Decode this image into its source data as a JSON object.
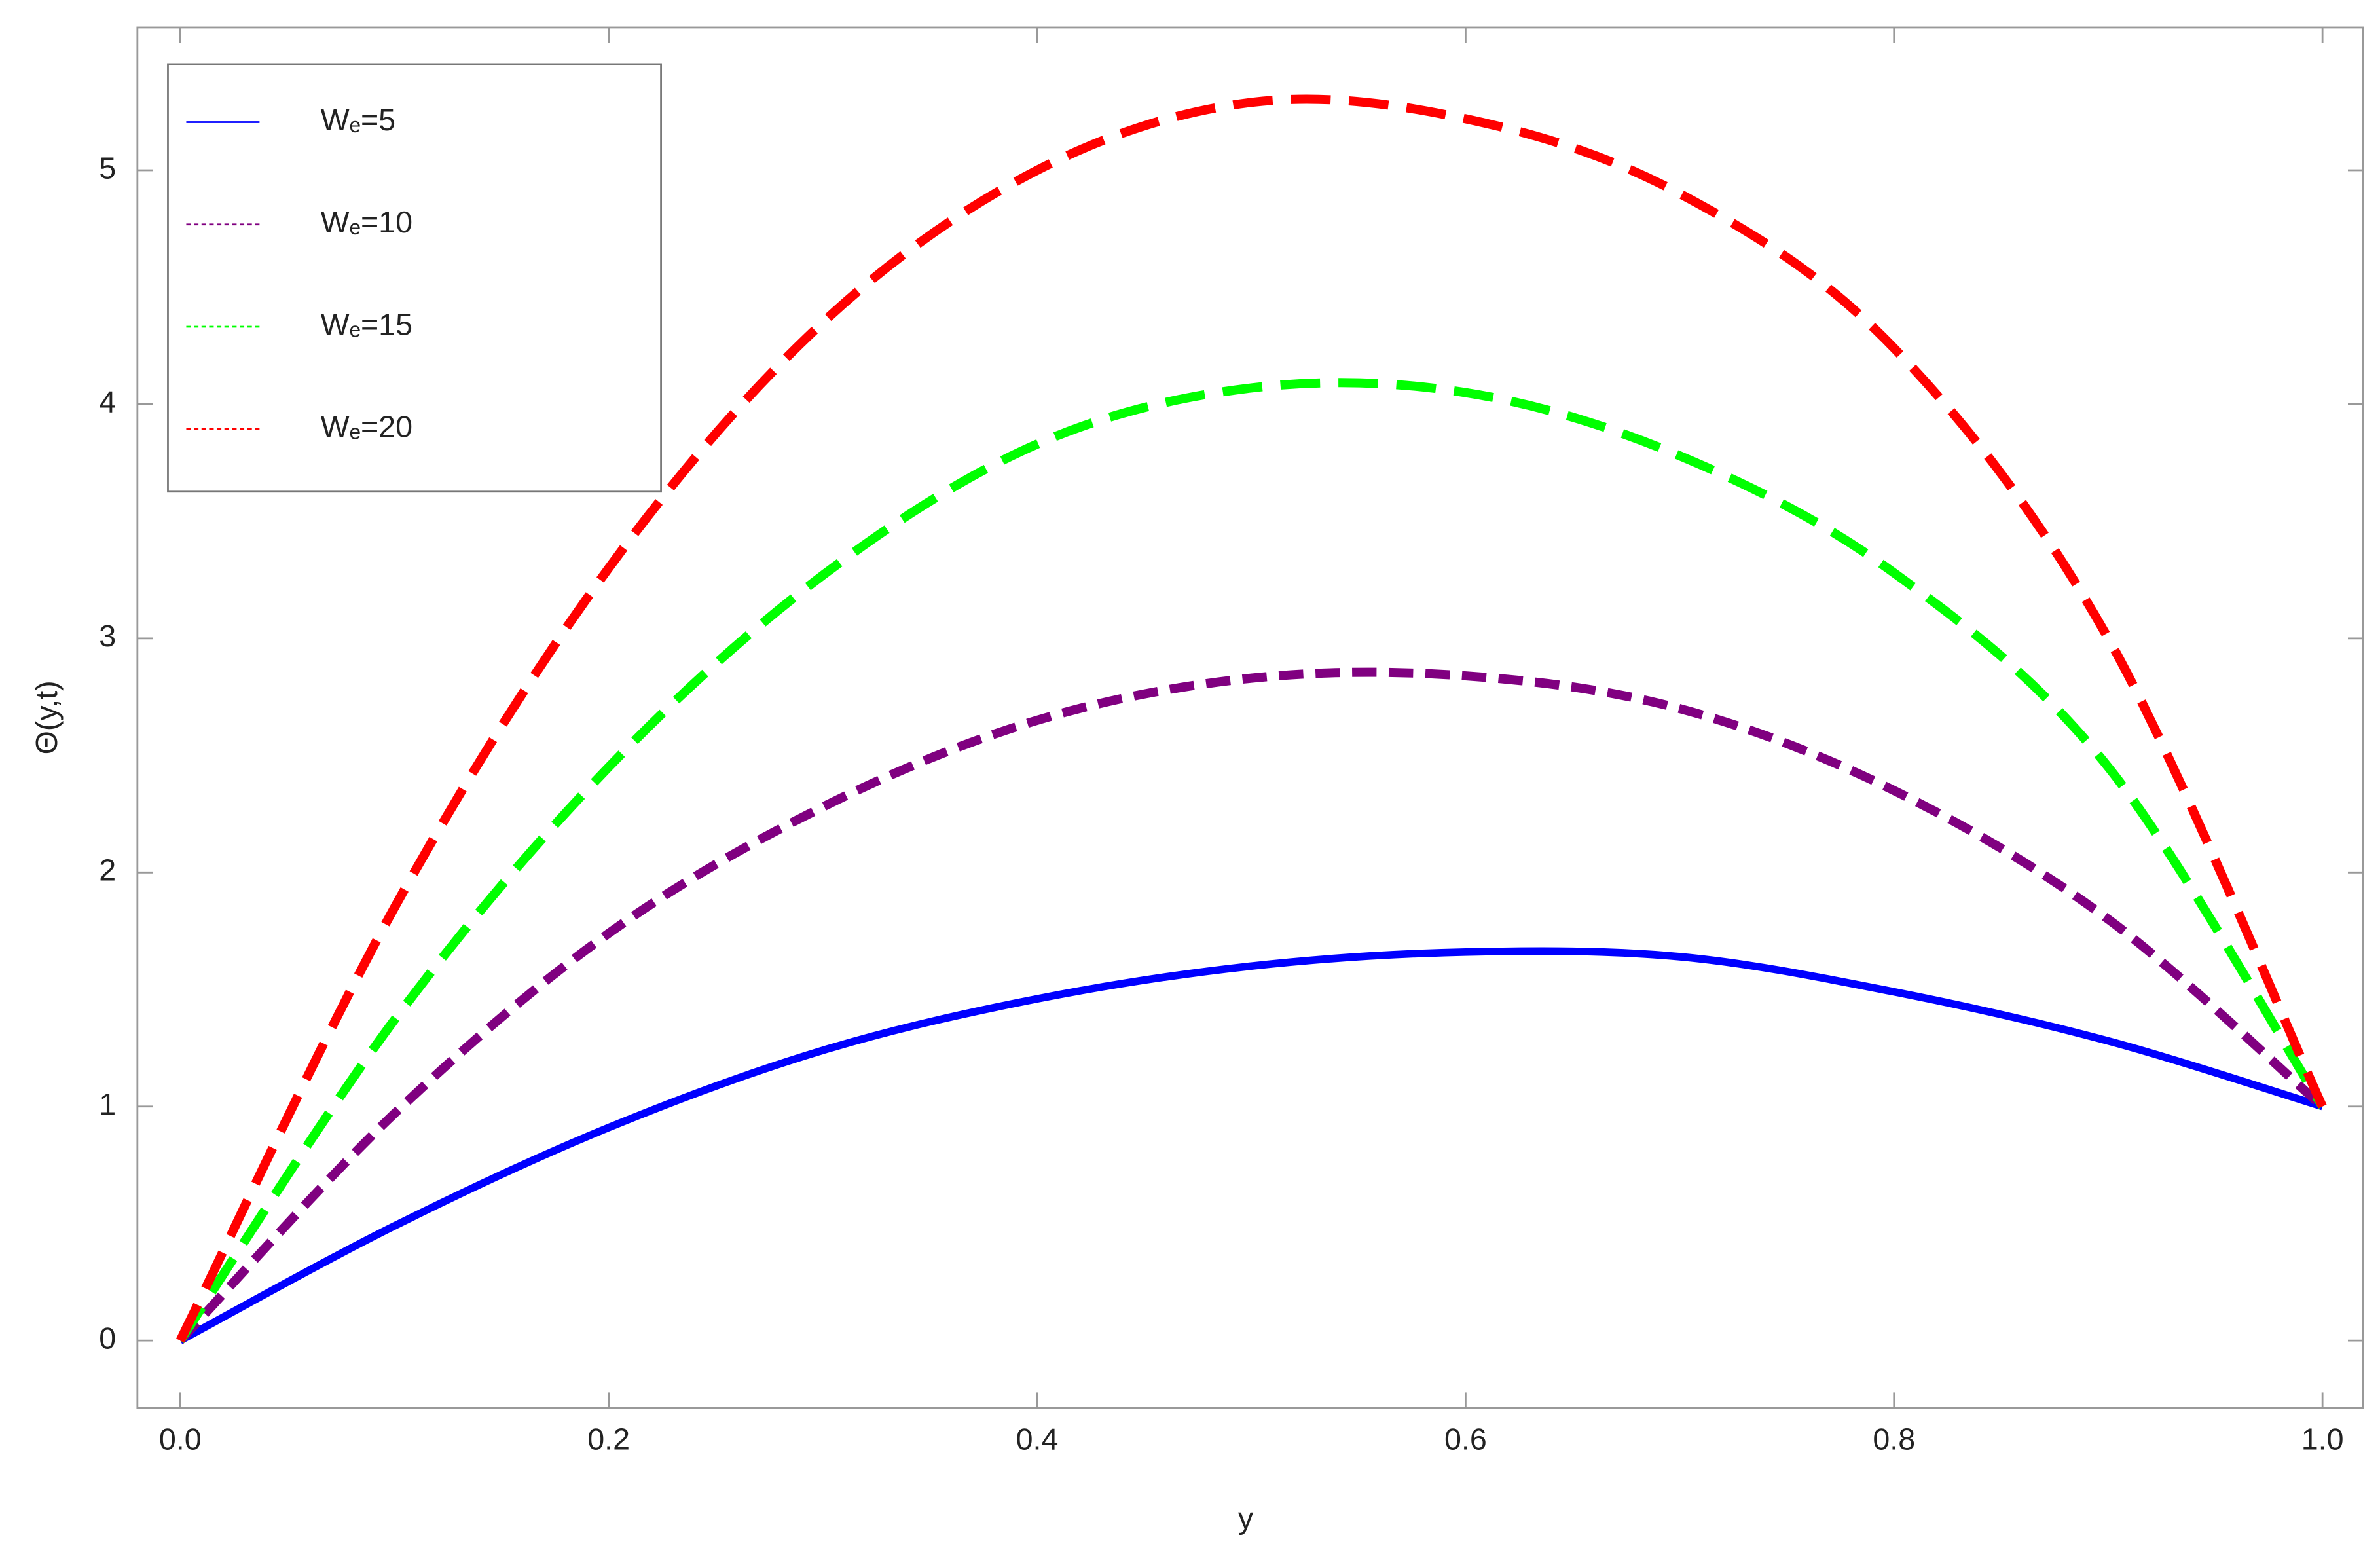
{
  "chart_data": {
    "type": "line",
    "x_label": "y",
    "y_label": "Θ(y,t)",
    "x": [
      0,
      0.1,
      0.2,
      0.3,
      0.4,
      0.5,
      0.6,
      0.7,
      0.8,
      0.9,
      1
    ],
    "series": [
      {
        "name": "Wₑ=5",
        "color": "#0000ff",
        "line_style": "solid",
        "values": [
          0,
          0.49,
          0.91,
          1.24,
          1.46,
          1.6,
          1.66,
          1.64,
          1.49,
          1.28,
          1.0
        ]
      },
      {
        "name": "Wₑ=10",
        "color": "#800080",
        "line_style": "dashed",
        "values": [
          0,
          0.97,
          1.74,
          2.28,
          2.65,
          2.83,
          2.84,
          2.7,
          2.35,
          1.8,
          1.0
        ]
      },
      {
        "name": "Wₑ=15",
        "color": "#00ff00",
        "line_style": "long-dashed",
        "values": [
          0,
          1.37,
          2.45,
          3.27,
          3.83,
          4.07,
          4.05,
          3.78,
          3.28,
          2.45,
          1.0
        ]
      },
      {
        "name": "Wₑ=20",
        "color": "#ff0000",
        "line_style": "long-dashed",
        "values": [
          0,
          1.85,
          3.3,
          4.35,
          5.0,
          5.29,
          5.22,
          4.9,
          4.24,
          3.0,
          1.0
        ]
      }
    ],
    "xlim": [
      -0.02,
      1.019
    ],
    "ylim": [
      -0.287,
      5.61
    ],
    "xticks": [
      {
        "value": 0,
        "label": "0.0"
      },
      0.2,
      0.4,
      0.6,
      0.8,
      {
        "value": 1,
        "label": "1.0"
      }
    ],
    "yticks": [
      0,
      1,
      2,
      3,
      4,
      5
    ],
    "grid": false,
    "legend": "upper-left"
  }
}
